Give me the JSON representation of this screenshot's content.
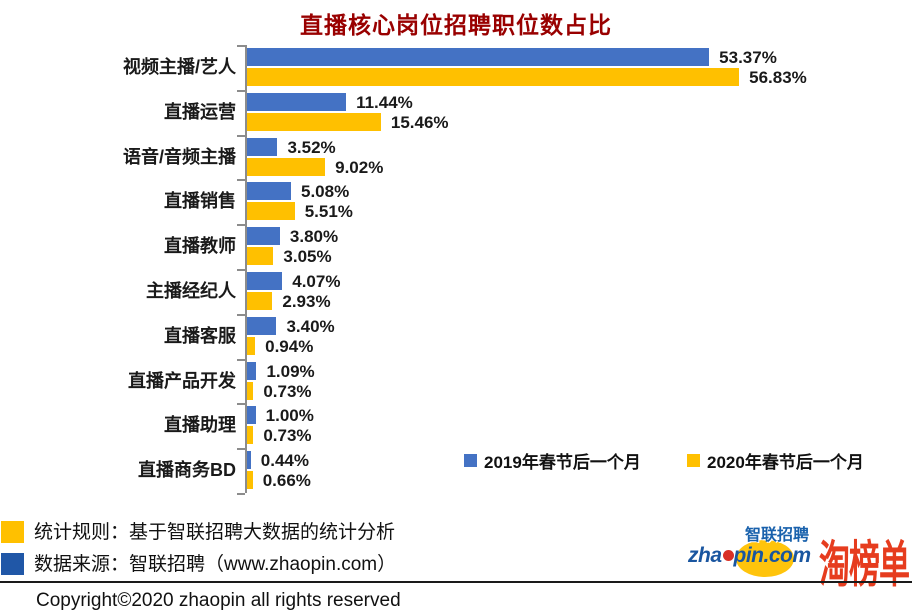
{
  "title": "直播核心岗位招聘职位数占比",
  "chart_data": {
    "type": "bar",
    "orientation": "horizontal",
    "title": "直播核心岗位招聘职位数占比",
    "categories": [
      "视频主播/艺人",
      "直播运营",
      "语音/音频主播",
      "直播销售",
      "直播教师",
      "主播经纪人",
      "直播客服",
      "直播产品开发",
      "直播助理",
      "直播商务BD"
    ],
    "series": [
      {
        "name": "2019年春节后一个月",
        "color": "#4472C4",
        "values": [
          53.37,
          11.44,
          3.52,
          5.08,
          3.8,
          4.07,
          3.4,
          1.09,
          1.0,
          0.44
        ]
      },
      {
        "name": "2020年春节后一个月",
        "color": "#FFC000",
        "values": [
          56.83,
          15.46,
          9.02,
          5.51,
          3.05,
          2.93,
          0.94,
          0.73,
          0.73,
          0.66
        ]
      }
    ],
    "value_suffix": "%",
    "value_decimals": 2,
    "xlim": [
      0,
      60
    ],
    "grid": false,
    "legend_position": "bottom-right-inside"
  },
  "legend": {
    "items": [
      {
        "label": "2019年春节后一个月",
        "color": "#4472C4"
      },
      {
        "label": "2020年春节后一个月",
        "color": "#FFC000"
      }
    ]
  },
  "footer": {
    "notes": [
      {
        "label": "统计规则：基于智联招聘大数据的统计分析",
        "color": "#FFC000"
      },
      {
        "label": "数据来源：智联招聘（www.zhaopin.com）",
        "color": "#2057A7"
      }
    ],
    "copyright": "Copyright©2020 zhaopin all rights reserved"
  },
  "logos": {
    "zhaopin_cn": "智联招聘",
    "zhaopin_en_pre": "zha",
    "zhaopin_en_post": "pin.com",
    "taobangdan": "淘榜单"
  },
  "colors": {
    "series_2019": "#4472C4",
    "series_2020": "#FFC000",
    "title_text": "#990000",
    "axis": "#8c8c8c",
    "taobangdan_red": "#E63C1E",
    "zhaopin_blue": "#1A56A0",
    "zhaopin_yellow": "#FFC40C"
  }
}
